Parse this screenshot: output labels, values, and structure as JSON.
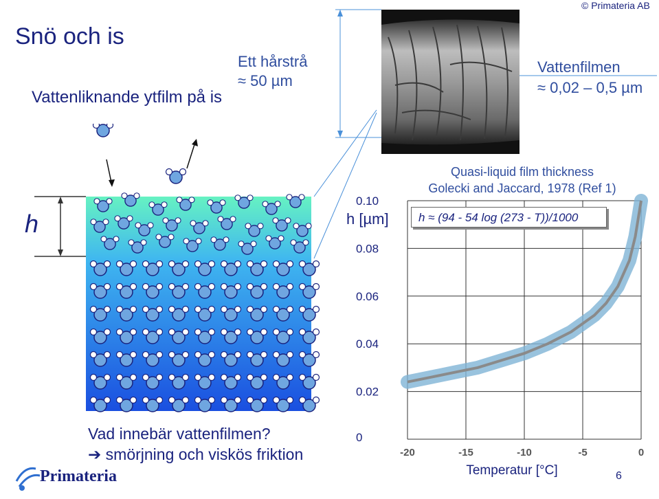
{
  "slide": {
    "title": "Snö och is",
    "subtitle": "Vattenliknande ytfilm på is",
    "copyright": "© Primateria AB",
    "page_number": "6"
  },
  "hair": {
    "line1": "Ett hårstrå",
    "line2": "≈ 50 µm"
  },
  "film": {
    "line1": "Vattenfilmen",
    "line2": "≈ 0,02 – 0,5 µm"
  },
  "diagram": {
    "h_label": "h"
  },
  "question": {
    "line1": "Vad innebär vattenfilmen?",
    "line2": "➔ smörjning och viskös friktion"
  },
  "logo": {
    "text": "Primateria"
  },
  "colors": {
    "title": "#1a237e",
    "water_top": "#66f2c2",
    "ice_bottom": "#1a4fe0",
    "curve_band": "#7fb4d6",
    "curve_line": "#8a8a8a"
  },
  "chart_data": {
    "type": "line",
    "title": "Quasi-liquid film thickness",
    "subtitle": "Golecki and Jaccard, 1978 (Ref 1)",
    "formula": "h ≈ (94 - 54 log (273 - T))/1000",
    "xlabel": "Temperatur [°C]",
    "ylabel": "h [µm]",
    "xlim": [
      -20,
      0
    ],
    "ylim": [
      0,
      0.1
    ],
    "x_ticks": [
      "-20",
      "-15",
      "-10",
      "-5",
      "0"
    ],
    "y_ticks": [
      "0",
      "0.02",
      "0.04",
      "0.06",
      "0.08",
      "0.10"
    ],
    "grid": true,
    "series": [
      {
        "x": [
          -20,
          -18,
          -16,
          -14,
          -12,
          -10,
          -8,
          -6,
          -4,
          -3,
          -2,
          -1,
          -0.5,
          0
        ],
        "values": [
          0.024,
          0.026,
          0.028,
          0.03,
          0.033,
          0.036,
          0.04,
          0.045,
          0.052,
          0.057,
          0.064,
          0.075,
          0.085,
          0.1
        ]
      }
    ]
  }
}
